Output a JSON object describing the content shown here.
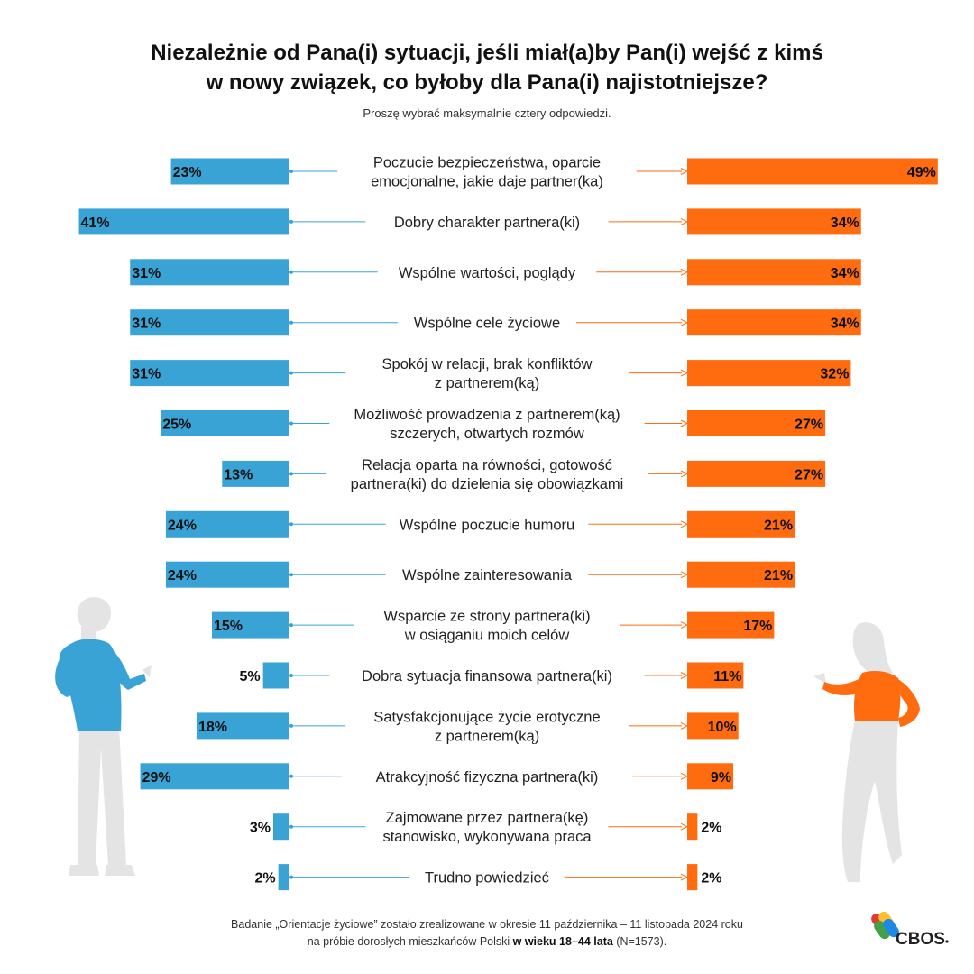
{
  "title_line1": "Niezależnie od Pana(i) sytuacji, jeśli miał(a)by Pan(i) wejść z kimś",
  "title_line2": "w nowy związek, co byłoby dla Pana(i) najistotniejsze?",
  "subtitle": "Proszę wybrać maksymalnie cztery odpowiedzi.",
  "footnote": {
    "line1": "Badanie „Orientacje życiowe” zostało zrealizowane  w okresie 11 października – 11 listopada 2024 roku",
    "line2_start": "na próbie dorosłych mieszkańców Polski ",
    "line2_bold": "w wieku 18–44 lata",
    "line2_end": " (N=1573)."
  },
  "logo_text": "CBOS",
  "colors": {
    "left": "#3aa3d6",
    "right": "#ff6b0f",
    "figure_gray": "#e4e4e4"
  },
  "chart_data": {
    "type": "bar",
    "orientation": "horizontal-diverging",
    "categories": [
      [
        "Poczucie bezpieczeństwa, oparcie",
        "emocjonalne, jakie daje partner(ka)"
      ],
      [
        "Dobry charakter partnera(ki)"
      ],
      [
        "Wspólne wartości, poglądy"
      ],
      [
        "Wspólne cele życiowe"
      ],
      [
        "Spokój w relacji, brak konfliktów",
        "z partnerem(ką)"
      ],
      [
        "Możliwość prowadzenia z partnerem(ką)",
        "szczerych, otwartych rozmów"
      ],
      [
        "Relacja oparta na równości, gotowość",
        "partnera(ki)  do dzielenia się obowiązkami"
      ],
      [
        "Wspólne poczucie humoru"
      ],
      [
        "Wspólne zainteresowania"
      ],
      [
        "Wsparcie ze strony partnera(ki)",
        "w osiąganiu moich celów"
      ],
      [
        "Dobra sytuacja finansowa partnera(ki)"
      ],
      [
        "Satysfakcjonujące życie erotyczne",
        "z partnerem(ką)"
      ],
      [
        "Atrakcyjność fizyczna partnera(ki)"
      ],
      [
        "Zajmowane przez partnera(kę)",
        "stanowisko, wykonywana praca"
      ],
      [
        "Trudno powiedzieć"
      ]
    ],
    "series": [
      {
        "name": "left",
        "color": "#3aa3d6",
        "values": [
          23,
          41,
          31,
          31,
          31,
          25,
          13,
          24,
          24,
          15,
          5,
          18,
          29,
          3,
          2
        ]
      },
      {
        "name": "right",
        "color": "#ff6b0f",
        "values": [
          49,
          34,
          34,
          34,
          32,
          27,
          27,
          21,
          21,
          17,
          11,
          10,
          9,
          2,
          2
        ]
      }
    ],
    "unit": "%",
    "xlim": [
      0,
      49
    ]
  }
}
